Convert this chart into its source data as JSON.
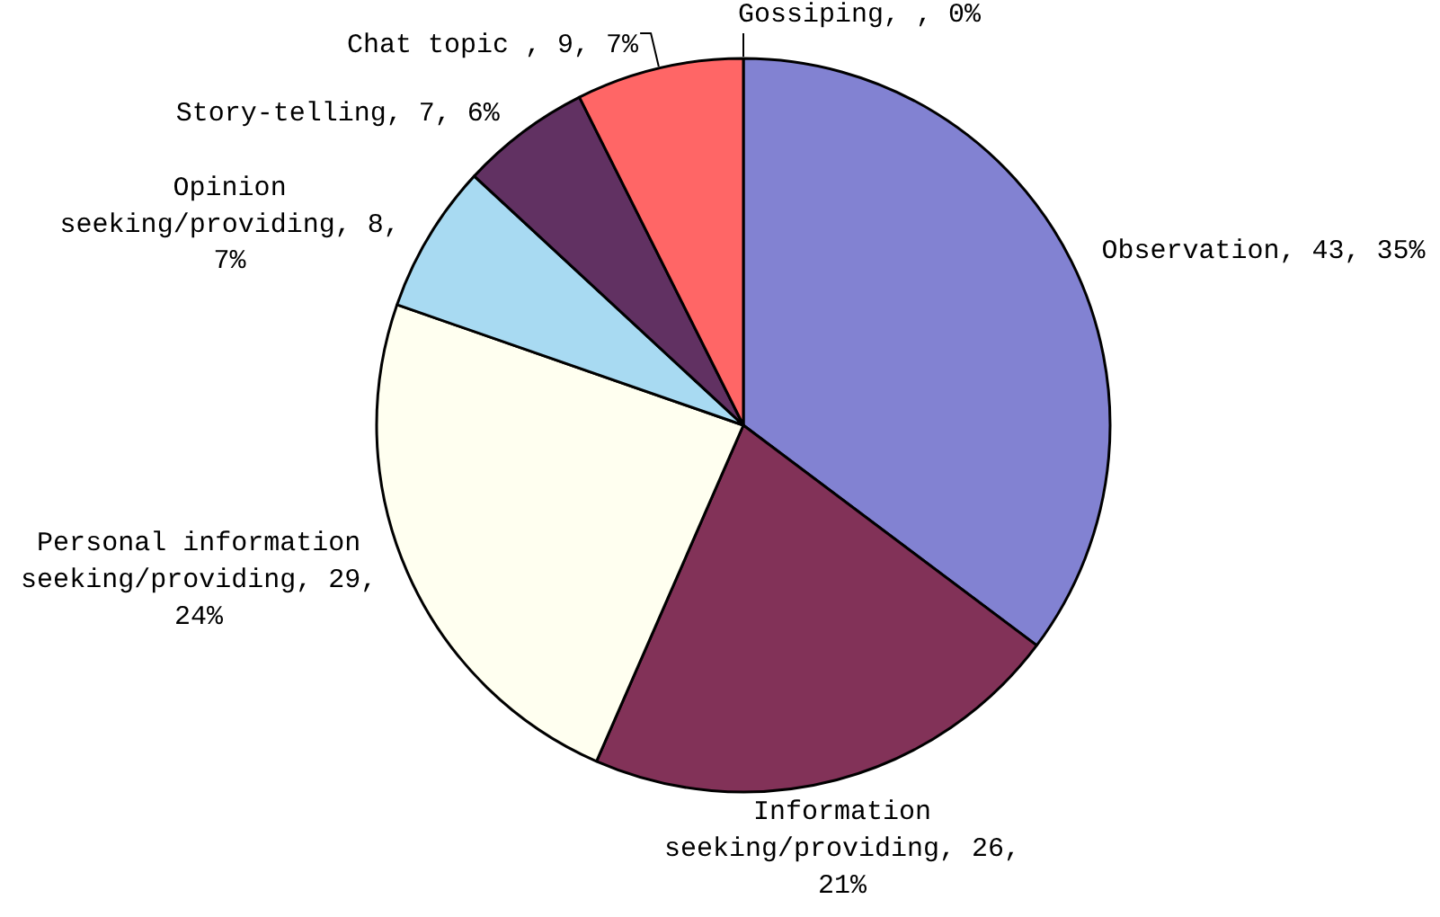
{
  "chart_data": {
    "type": "pie",
    "categories": [
      "Observation",
      "Information seeking/providing",
      "Personal information seeking/providing",
      "Opinion seeking/providing",
      "Story-telling",
      "Chat topic",
      "Gossiping"
    ],
    "values": [
      43,
      26,
      29,
      8,
      7,
      9,
      0
    ],
    "colors": [
      "#8282d2",
      "#823258",
      "#fffff0",
      "#a8daf2",
      "#613162",
      "#ff6666",
      null
    ],
    "value_labels": [
      ", 43, 35%",
      ", 26, 21%",
      ", 29, 24%",
      ", 8, 7%",
      ", 7, 6%",
      " , 9, 7%",
      ", , 0%"
    ]
  }
}
